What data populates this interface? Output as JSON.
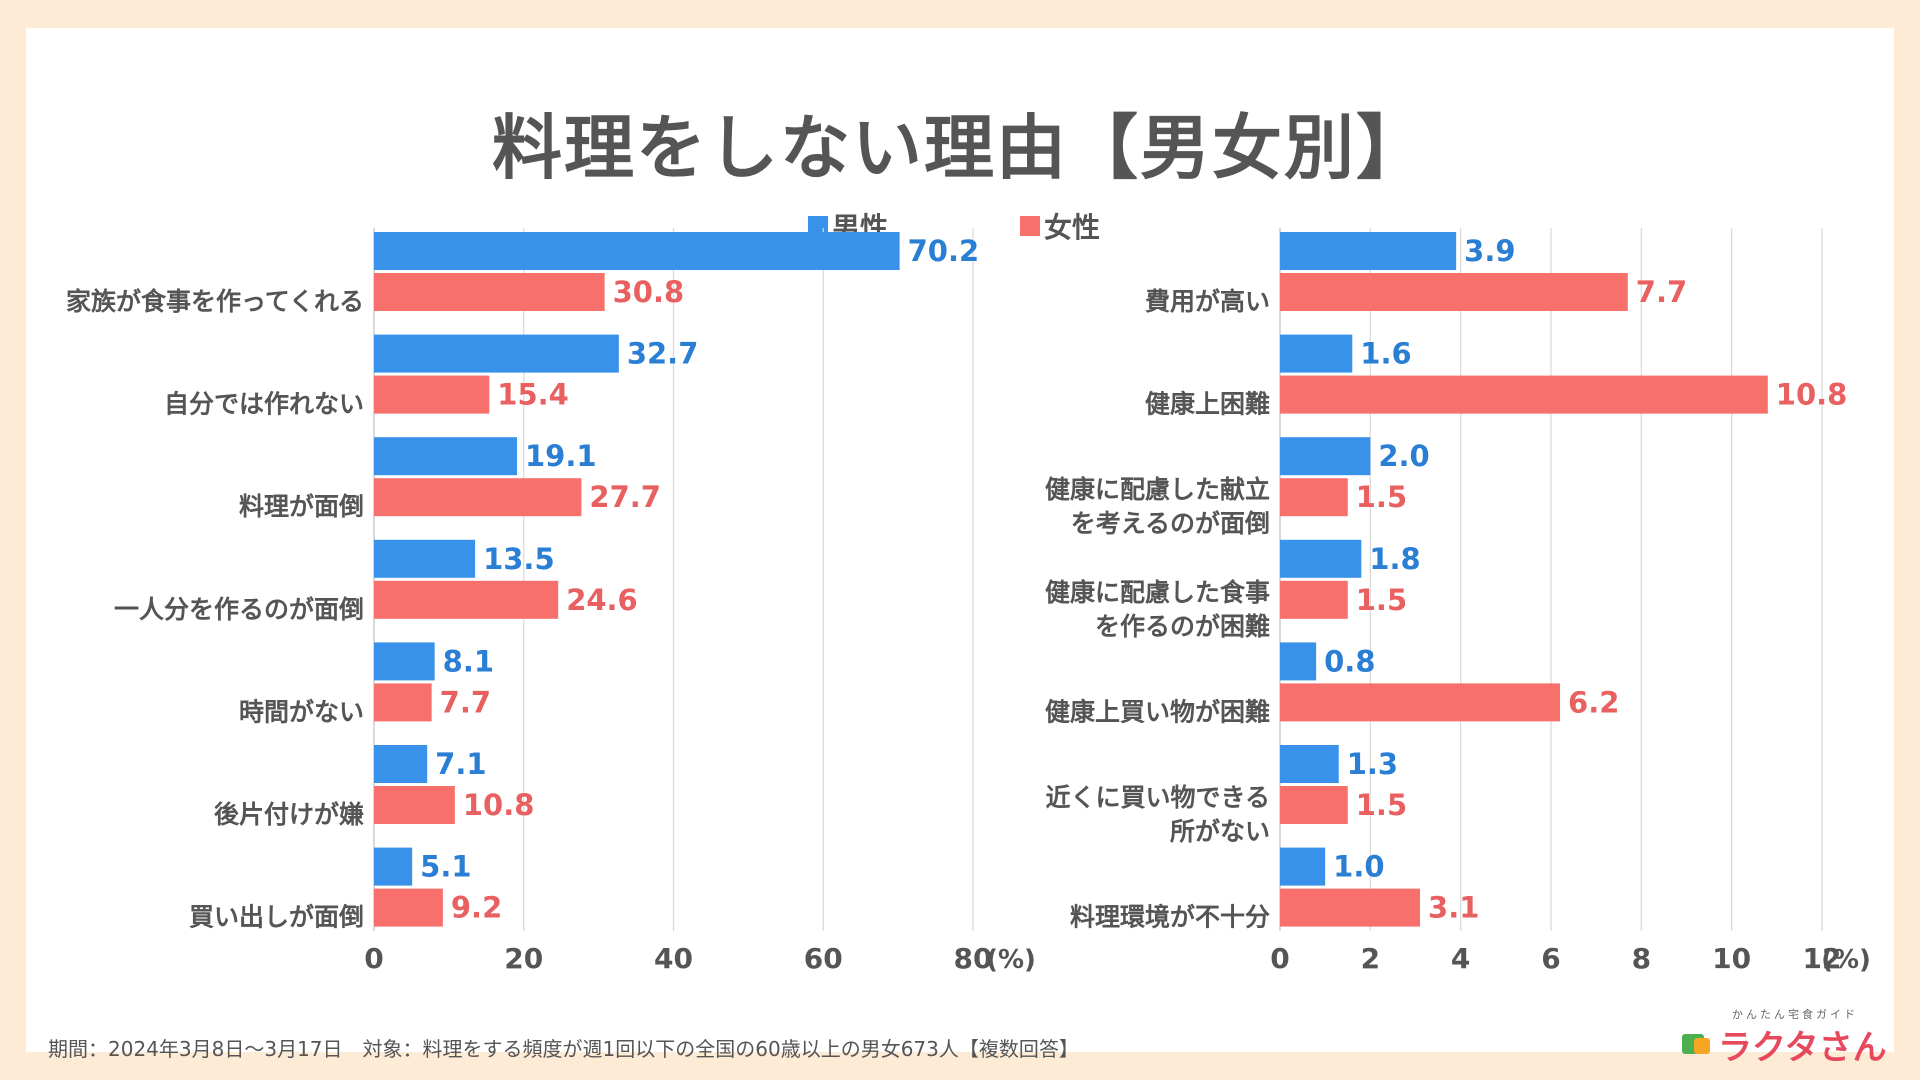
{
  "title": "料理をしない理由【男女別】",
  "legend": {
    "male": "男性",
    "female": "女性"
  },
  "colors": {
    "male": "#3892ea",
    "female": "#f8706b",
    "male_text": "#2a7fd4",
    "female_text": "#e86060",
    "grid": "#d9d9d9",
    "text": "#555555"
  },
  "footer": "期間：2024年3月8日〜3月17日　対象：料理をする頻度が週1回以下の全国の60歳以上の男女673人【複数回答】",
  "logo": {
    "subtitle": "かんたん宅食ガイド",
    "name": "ラクタさん"
  },
  "chart_data": [
    {
      "type": "bar",
      "orientation": "horizontal",
      "categories": [
        [
          "家族が食事を作ってくれる"
        ],
        [
          "自分では作れない"
        ],
        [
          "料理が面倒"
        ],
        [
          "一人分を作るのが面倒"
        ],
        [
          "時間がない"
        ],
        [
          "後片付けが嫌"
        ],
        [
          "買い出しが面倒"
        ]
      ],
      "series": [
        {
          "name": "男性",
          "values": [
            70.2,
            32.7,
            19.1,
            13.5,
            8.1,
            7.1,
            5.1
          ],
          "labels": [
            "70.2",
            "32.7",
            "19.1",
            "13.5",
            "8.1",
            "7.1",
            "5.1"
          ]
        },
        {
          "name": "女性",
          "values": [
            30.8,
            15.4,
            27.7,
            24.6,
            7.7,
            10.8,
            9.2
          ],
          "labels": [
            "30.8",
            "15.4",
            "27.7",
            "24.6",
            "7.7",
            "10.8",
            "9.2"
          ]
        }
      ],
      "xlim": [
        0,
        80
      ],
      "ticks": [
        0,
        20,
        40,
        60,
        80
      ],
      "tick_labels": [
        "0",
        "20",
        "40",
        "60",
        "80"
      ],
      "unit": "(%)"
    },
    {
      "type": "bar",
      "orientation": "horizontal",
      "categories": [
        [
          "費用が高い"
        ],
        [
          "健康上困難"
        ],
        [
          "健康に配慮した献立",
          "を考えるのが面倒"
        ],
        [
          "健康に配慮した食事",
          "を作るのが困難"
        ],
        [
          "健康上買い物が困難"
        ],
        [
          "近くに買い物できる",
          "所がない"
        ],
        [
          "料理環境が不十分"
        ]
      ],
      "series": [
        {
          "name": "男性",
          "values": [
            3.9,
            1.6,
            2.0,
            1.8,
            0.8,
            1.3,
            1.0
          ],
          "labels": [
            "3.9",
            "1.6",
            "2.0",
            "1.8",
            "0.8",
            "1.3",
            "1.0"
          ]
        },
        {
          "name": "女性",
          "values": [
            7.7,
            10.8,
            1.5,
            1.5,
            6.2,
            1.5,
            3.1
          ],
          "labels": [
            "7.7",
            "10.8",
            "1.5",
            "1.5",
            "6.2",
            "1.5",
            "3.1"
          ]
        }
      ],
      "xlim": [
        0,
        12
      ],
      "ticks": [
        0,
        2,
        4,
        6,
        8,
        10,
        12
      ],
      "tick_labels": [
        "0",
        "2",
        "4",
        "6",
        "8",
        "10",
        "12"
      ],
      "unit": "(%)"
    }
  ]
}
